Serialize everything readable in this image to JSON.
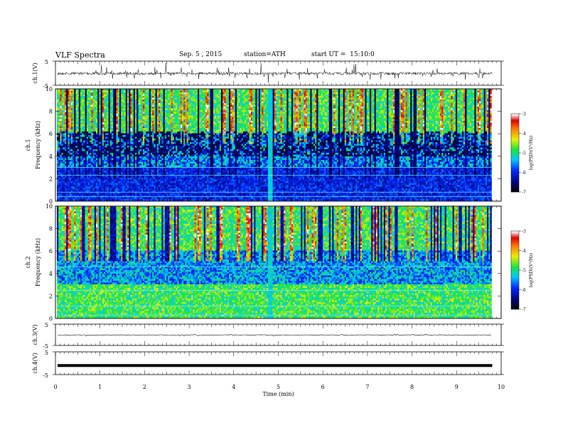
{
  "header": {
    "title": "VLF Spectra",
    "date": "Sep. 5 , 2015",
    "station": "station=ATH",
    "start_ut": "start UT =  15:10:0"
  },
  "chart_data": [
    {
      "type": "line",
      "panel": "ch1-waveform",
      "ylabel": "ch.1(V)",
      "ylim": [
        -5,
        5
      ],
      "yticks": [
        "5",
        "-5"
      ]
    },
    {
      "type": "heatmap",
      "panel": "ch1-spectrogram",
      "ylabel_top": "ch.1",
      "ylabel": "Frequency (kHz)",
      "ylim": [
        0,
        10
      ],
      "yticks": [
        "0",
        "2",
        "4",
        "6",
        "8",
        "10"
      ],
      "colorbar": {
        "label": "log(PSD)(V²/Hz)",
        "range": [
          -7,
          -3
        ],
        "ticks": [
          "-3",
          "-4",
          "-5",
          "-6",
          "-7"
        ]
      },
      "dropout_time_min": 4.8
    },
    {
      "type": "heatmap",
      "panel": "ch2-spectrogram",
      "ylabel_top": "ch.2",
      "ylabel": "Frequency (kHz)",
      "ylim": [
        0,
        10
      ],
      "yticks": [
        "0",
        "2",
        "4",
        "6",
        "8",
        "10"
      ],
      "colorbar": {
        "label": "log(PSD)(V²/Hz)",
        "range": [
          -7,
          -3
        ],
        "ticks": [
          "-3",
          "-4",
          "-5",
          "-6",
          "-7"
        ]
      },
      "dropout_time_min": 4.8
    },
    {
      "type": "line",
      "panel": "ch3-waveform",
      "ylabel": "ch.3(V)",
      "ylim": [
        -5,
        5
      ],
      "yticks": [
        "5",
        "-5"
      ],
      "level": -0.1
    },
    {
      "type": "line",
      "panel": "ch4-waveform",
      "ylabel": "ch.4(V)",
      "ylim": [
        -5,
        5
      ],
      "yticks": [
        "5",
        "-5"
      ],
      "level": -1
    }
  ],
  "xaxis": {
    "label": "Time (min)",
    "xlim": [
      0,
      10
    ],
    "ticks": [
      "0",
      "1",
      "2",
      "3",
      "4",
      "5",
      "6",
      "7",
      "8",
      "9",
      "10"
    ],
    "data_end_min": 9.8
  }
}
